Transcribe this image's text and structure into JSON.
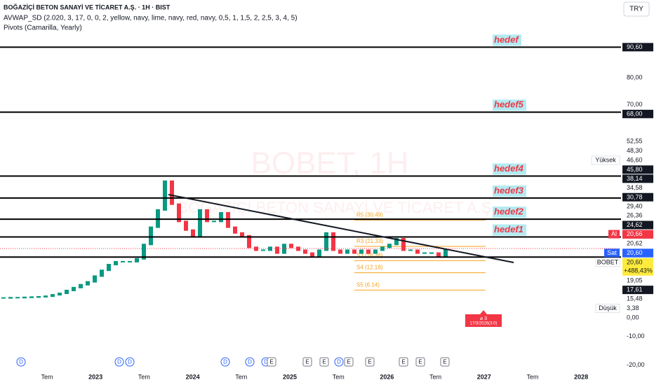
{
  "header": {
    "title": "BOĞAZİÇİ BETON SANAYİ VE TİCARET A.Ş. · 1H · BIST",
    "indicator": "AVWAP_SD (2.020, 3, 17, 0, 0, 2, yellow, navy, lime, navy, red, navy, 0,5, 1, 1,5, 2, 2,5, 3, 4, 5)",
    "pivots": "Pivots (Camarilla, Yearly)",
    "currency": "TRY"
  },
  "watermark": {
    "symbol": "BOBET, 1H",
    "name": "BOĞAZİÇİ BETON SANAYİ VE TİCARET A.Ş."
  },
  "chart": {
    "ylim": [
      -22,
      107
    ],
    "up_color": "#089981",
    "down_color": "#f23645",
    "candles": [
      3.4,
      3.5,
      3.5,
      3.6,
      3.7,
      3.8,
      4,
      4.5,
      5,
      6,
      7,
      8,
      9,
      11,
      13,
      15,
      16,
      16,
      16,
      17,
      22,
      28,
      34,
      44,
      36,
      30,
      27,
      25,
      34,
      30,
      30,
      33,
      28,
      26,
      25,
      21,
      20,
      20,
      21,
      19,
      22,
      21,
      20,
      19,
      18,
      20,
      26,
      20,
      19,
      20,
      19,
      20,
      19,
      20,
      21,
      22,
      24,
      20,
      20,
      19,
      19,
      19,
      18,
      20
    ],
    "target_lines": [
      {
        "value": 90.6,
        "label": "90,60",
        "name": "hedef"
      },
      {
        "value": 68,
        "label": "68,00",
        "name": "hedef5"
      },
      {
        "value": 45.8,
        "label": "45,80",
        "name": "hedef4"
      },
      {
        "value": 38.14,
        "label": "38,14",
        "name": "hedef3"
      },
      {
        "value": 30.78,
        "label": "30,78",
        "name": "hedef2"
      },
      {
        "value": 24.62,
        "label": "24,62",
        "name": "hedef1"
      },
      {
        "value": 17.61,
        "label": "17,61"
      }
    ],
    "price_labels": [
      {
        "value": 80,
        "label": "80,00",
        "style": "plain"
      },
      {
        "value": 70,
        "label": "70,00",
        "style": "plain"
      },
      {
        "value": 52.55,
        "label": "52,55",
        "style": "plain"
      },
      {
        "value": 48.3,
        "label": "48,30",
        "style": "plain"
      },
      {
        "value": 46.6,
        "label": "46,60",
        "style": "plain",
        "tag": "Yüksek"
      },
      {
        "value": 34.58,
        "label": "34,58",
        "style": "plain"
      },
      {
        "value": 29.4,
        "label": "29,40",
        "style": "plain"
      },
      {
        "value": 26.36,
        "label": "26,36",
        "style": "plain"
      },
      {
        "value": 20.66,
        "label": "20,66",
        "style": "red",
        "tag": "Al"
      },
      {
        "value": 20.62,
        "label": "20,62",
        "style": "plain"
      },
      {
        "value": 20.6,
        "label": "20,60",
        "style": "blue",
        "tag": "Sat"
      },
      {
        "value": 20.6,
        "label": "20,60",
        "style": "yellow",
        "tag": "BOBET",
        "change": "+488,43%"
      },
      {
        "value": 19.05,
        "label": "19,05",
        "style": "plain"
      },
      {
        "value": 15.48,
        "label": "15,48",
        "style": "plain"
      },
      {
        "value": 3.38,
        "label": "3,38",
        "style": "plain",
        "tag": "Düşük"
      },
      {
        "value": 0,
        "label": "0,00",
        "style": "plain"
      },
      {
        "value": -10,
        "label": "-10,00",
        "style": "plain"
      },
      {
        "value": -20,
        "label": "-20,00",
        "style": "plain"
      }
    ],
    "pivot_levels": [
      {
        "value": 30.49,
        "label": "R5 (30.49)"
      },
      {
        "value": 21.33,
        "label": "R3 (21.33)"
      },
      {
        "value": 16.38,
        "label": "S3 (16.38)"
      },
      {
        "value": 12.18,
        "label": "S4 (12.18)"
      },
      {
        "value": 6.14,
        "label": "S5 (6.14)"
      }
    ],
    "time_labels": [
      "Tem",
      "2023",
      "Tem",
      "2024",
      "Tem",
      "2025",
      "Tem",
      "2026",
      "Tem",
      "2027",
      "Tem",
      "2028"
    ],
    "events": [
      "D",
      "D",
      "D",
      "D",
      "D",
      "D",
      "E",
      "E",
      "E",
      "D",
      "E",
      "E",
      "E",
      "E",
      "E"
    ],
    "alert": {
      "title": "⌀ 3",
      "date": "17/3/2026(3:0)"
    }
  }
}
